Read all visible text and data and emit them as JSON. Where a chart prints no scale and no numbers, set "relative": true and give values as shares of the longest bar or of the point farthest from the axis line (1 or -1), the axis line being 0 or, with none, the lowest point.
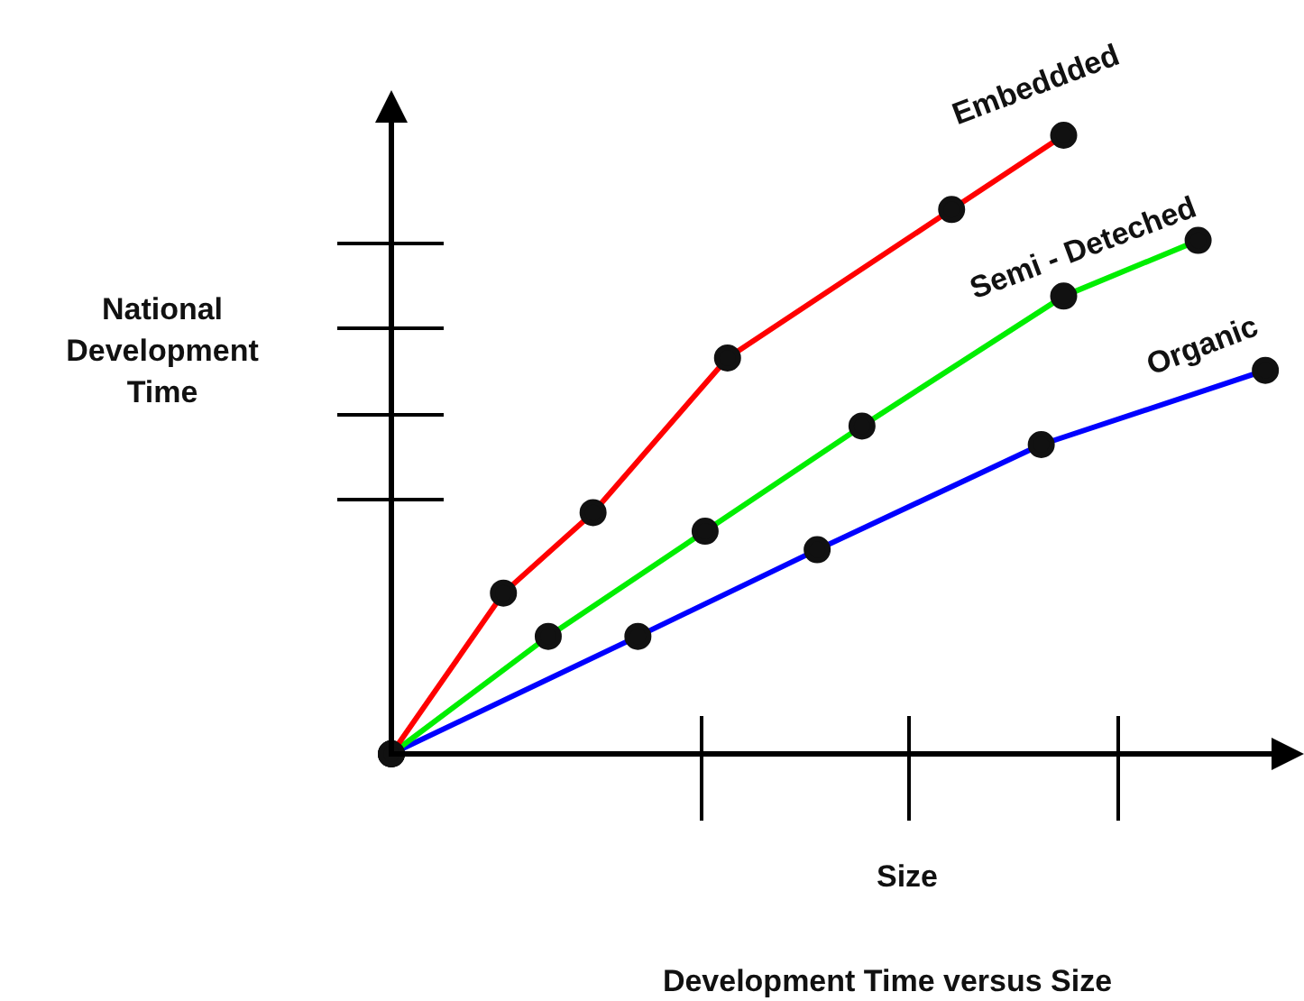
{
  "chart_data": {
    "type": "line",
    "title": "Development Time versus Size",
    "xlabel": "Size",
    "ylabel": "National Development Time",
    "relative": true,
    "categories": [
      null,
      null,
      null,
      null,
      null,
      null,
      null,
      null,
      null,
      null,
      null,
      null,
      null,
      null,
      null,
      null,
      null,
      null,
      null,
      null,
      null,
      null,
      null,
      null,
      null,
      null,
      null,
      null,
      null,
      null,
      null,
      null,
      null,
      null,
      null,
      null,
      null,
      null,
      null,
      null,
      null
    ],
    "marker": "circle",
    "series": [
      {
        "name": "Embeddded",
        "color": "#ff0000",
        "values": [
          0,
          null,
          null,
          null,
          null,
          0.26,
          null,
          null,
          null,
          0.39,
          null,
          null,
          null,
          null,
          null,
          0.64,
          null,
          null,
          null,
          null,
          null,
          null,
          null,
          null,
          null,
          0.88,
          null,
          null,
          null,
          null,
          1,
          null,
          null,
          null,
          null,
          null,
          null,
          null,
          null,
          null,
          null
        ]
      },
      {
        "name": "Semi - Deteched",
        "color": "#00ee00",
        "values": [
          0,
          null,
          null,
          null,
          null,
          null,
          null,
          0.19,
          null,
          null,
          null,
          null,
          null,
          null,
          0.36,
          null,
          null,
          null,
          null,
          null,
          null,
          0.53,
          null,
          null,
          null,
          null,
          null,
          null,
          null,
          null,
          0.74,
          null,
          null,
          null,
          null,
          null,
          0.83,
          null,
          null,
          null,
          null
        ]
      },
      {
        "name": "Organic",
        "color": "#0000ff",
        "values": [
          0,
          null,
          null,
          null,
          null,
          null,
          null,
          null,
          null,
          null,
          null,
          0.19,
          null,
          null,
          null,
          null,
          null,
          null,
          null,
          0.33,
          null,
          null,
          null,
          null,
          null,
          null,
          null,
          null,
          null,
          0.5,
          null,
          null,
          null,
          null,
          null,
          null,
          null,
          null,
          null,
          0.62,
          null
        ]
      }
    ]
  }
}
